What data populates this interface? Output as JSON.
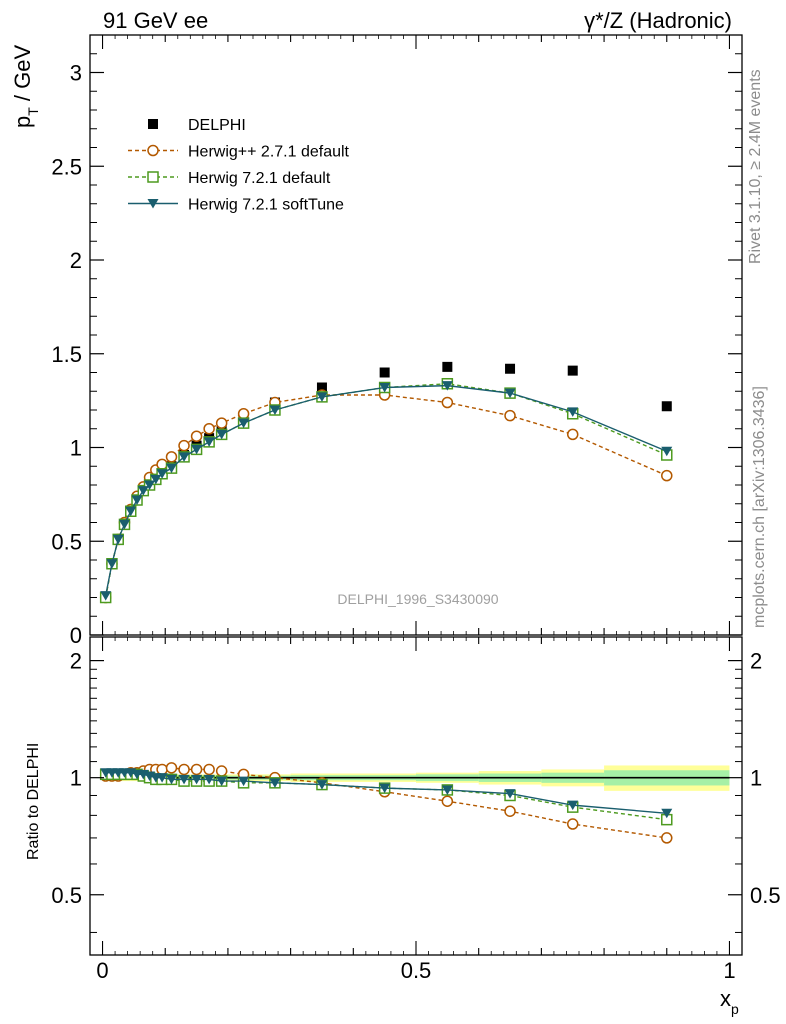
{
  "header": {
    "left": "91 GeV ee",
    "right": "γ*/Z (Hadronic)"
  },
  "side": {
    "rivet": "Rivet 3.1.10, ≥ 2.4M events",
    "mcplots": "mcplots.cern.ch [arXiv:1306.3436]"
  },
  "watermark": "DELPHI_1996_S3430090",
  "chart_data": [
    {
      "type": "scatter",
      "panel": "main",
      "ylabel_main": "p",
      "ylabel_sub": "T",
      "ylabel_unit": " / GeV",
      "ylim": [
        0,
        3.2
      ],
      "yticks": [
        0,
        0.5,
        1,
        1.5,
        2,
        2.5,
        3
      ],
      "yticklabels": [
        "0",
        "0.5",
        "1",
        "1.5",
        "2",
        "2.5",
        "3"
      ],
      "xlim": [
        -0.02,
        1.02
      ],
      "legend_position": "top-left",
      "series": [
        {
          "name": "DELPHI",
          "marker": "filled-square",
          "color": "#000000",
          "line": "none",
          "x": [
            0.005,
            0.015,
            0.025,
            0.035,
            0.045,
            0.055,
            0.065,
            0.075,
            0.085,
            0.095,
            0.11,
            0.13,
            0.15,
            0.17,
            0.19,
            0.225,
            0.275,
            0.35,
            0.45,
            0.55,
            0.65,
            0.75,
            0.9
          ],
          "y": [
            0.2,
            0.38,
            0.51,
            0.59,
            0.66,
            0.72,
            0.77,
            0.81,
            0.84,
            0.87,
            0.9,
            0.96,
            1.01,
            1.05,
            1.09,
            1.16,
            1.24,
            1.32,
            1.4,
            1.43,
            1.42,
            1.41,
            1.22
          ]
        },
        {
          "name": "Herwig++ 2.7.1 default",
          "marker": "open-circle",
          "color": "#b35900",
          "line": "dashed",
          "x": [
            0.005,
            0.015,
            0.025,
            0.035,
            0.045,
            0.055,
            0.065,
            0.075,
            0.085,
            0.095,
            0.11,
            0.13,
            0.15,
            0.17,
            0.19,
            0.225,
            0.275,
            0.35,
            0.45,
            0.55,
            0.65,
            0.75,
            0.9
          ],
          "y": [
            0.2,
            0.38,
            0.51,
            0.6,
            0.67,
            0.74,
            0.79,
            0.84,
            0.88,
            0.91,
            0.95,
            1.01,
            1.06,
            1.1,
            1.13,
            1.18,
            1.24,
            1.28,
            1.28,
            1.24,
            1.17,
            1.07,
            0.85
          ]
        },
        {
          "name": "Herwig 7.2.1 default",
          "marker": "open-square",
          "color": "#4d9a1f",
          "line": "dashed",
          "x": [
            0.005,
            0.015,
            0.025,
            0.035,
            0.045,
            0.055,
            0.065,
            0.075,
            0.085,
            0.095,
            0.11,
            0.13,
            0.15,
            0.17,
            0.19,
            0.225,
            0.275,
            0.35,
            0.45,
            0.55,
            0.65,
            0.75,
            0.9
          ],
          "y": [
            0.2,
            0.38,
            0.51,
            0.59,
            0.66,
            0.72,
            0.77,
            0.8,
            0.83,
            0.86,
            0.89,
            0.95,
            0.99,
            1.03,
            1.07,
            1.13,
            1.2,
            1.27,
            1.32,
            1.34,
            1.29,
            1.18,
            0.96
          ]
        },
        {
          "name": "Herwig 7.2.1 softTune",
          "marker": "filled-triangle-down",
          "color": "#1a5e6e",
          "line": "solid",
          "x": [
            0.005,
            0.015,
            0.025,
            0.035,
            0.045,
            0.055,
            0.065,
            0.075,
            0.085,
            0.095,
            0.11,
            0.13,
            0.15,
            0.17,
            0.19,
            0.225,
            0.275,
            0.35,
            0.45,
            0.55,
            0.65,
            0.75,
            0.9
          ],
          "y": [
            0.21,
            0.38,
            0.51,
            0.59,
            0.66,
            0.72,
            0.77,
            0.8,
            0.83,
            0.86,
            0.89,
            0.95,
            0.99,
            1.03,
            1.07,
            1.13,
            1.2,
            1.27,
            1.32,
            1.33,
            1.29,
            1.19,
            0.98
          ]
        }
      ]
    },
    {
      "type": "scatter",
      "panel": "ratio",
      "ylabel": "Ratio to DELPHI",
      "ylim": [
        0.35,
        2.3
      ],
      "yscale": "log",
      "yticks": [
        0.5,
        1,
        2
      ],
      "yticklabels": [
        "0.5",
        "1",
        "2"
      ],
      "xlabel_main": "x",
      "xlabel_sub": "p",
      "xlim": [
        -0.02,
        1.02
      ],
      "xticks": [
        0,
        0.5,
        1
      ],
      "xticklabels": [
        "0",
        "0.5",
        "1"
      ],
      "uncertainty_bands": [
        {
          "x0": 0.0,
          "x1": 0.3,
          "inner": 0.012,
          "outer": 0.02
        },
        {
          "x0": 0.3,
          "x1": 0.5,
          "inner": 0.015,
          "outer": 0.025
        },
        {
          "x0": 0.5,
          "x1": 0.6,
          "inner": 0.02,
          "outer": 0.03
        },
        {
          "x0": 0.6,
          "x1": 0.7,
          "inner": 0.025,
          "outer": 0.04
        },
        {
          "x0": 0.7,
          "x1": 0.8,
          "inner": 0.03,
          "outer": 0.05
        },
        {
          "x0": 0.8,
          "x1": 1.0,
          "inner": 0.045,
          "outer": 0.075
        }
      ],
      "series": [
        {
          "name": "Herwig++ 2.7.1 default",
          "marker": "open-circle",
          "color": "#b35900",
          "line": "dashed",
          "x": [
            0.005,
            0.015,
            0.025,
            0.035,
            0.045,
            0.055,
            0.065,
            0.075,
            0.085,
            0.095,
            0.11,
            0.13,
            0.15,
            0.17,
            0.19,
            0.225,
            0.275,
            0.35,
            0.45,
            0.55,
            0.65,
            0.75,
            0.9
          ],
          "y": [
            1.01,
            1.01,
            1.01,
            1.02,
            1.03,
            1.03,
            1.04,
            1.05,
            1.05,
            1.05,
            1.06,
            1.05,
            1.05,
            1.05,
            1.04,
            1.02,
            1.0,
            0.97,
            0.92,
            0.87,
            0.82,
            0.76,
            0.7
          ]
        },
        {
          "name": "Herwig 7.2.1 default",
          "marker": "open-square",
          "color": "#4d9a1f",
          "line": "dashed",
          "x": [
            0.005,
            0.015,
            0.025,
            0.035,
            0.045,
            0.055,
            0.065,
            0.075,
            0.085,
            0.095,
            0.11,
            0.13,
            0.15,
            0.17,
            0.19,
            0.225,
            0.275,
            0.35,
            0.45,
            0.55,
            0.65,
            0.75,
            0.9
          ],
          "y": [
            1.02,
            1.02,
            1.02,
            1.02,
            1.02,
            1.02,
            1.01,
            1.0,
            0.99,
            0.99,
            0.99,
            0.98,
            0.98,
            0.98,
            0.98,
            0.97,
            0.97,
            0.96,
            0.94,
            0.93,
            0.9,
            0.84,
            0.78
          ]
        },
        {
          "name": "Herwig 7.2.1 softTune",
          "marker": "filled-triangle-down",
          "color": "#1a5e6e",
          "line": "solid",
          "x": [
            0.005,
            0.015,
            0.025,
            0.035,
            0.045,
            0.055,
            0.065,
            0.075,
            0.085,
            0.095,
            0.11,
            0.13,
            0.15,
            0.17,
            0.19,
            0.225,
            0.275,
            0.35,
            0.45,
            0.55,
            0.65,
            0.75,
            0.9
          ],
          "y": [
            1.03,
            1.03,
            1.03,
            1.03,
            1.03,
            1.02,
            1.02,
            1.01,
            1.0,
            1.0,
            0.99,
            0.99,
            0.99,
            0.99,
            0.98,
            0.98,
            0.97,
            0.96,
            0.94,
            0.93,
            0.91,
            0.85,
            0.81
          ]
        }
      ]
    }
  ]
}
